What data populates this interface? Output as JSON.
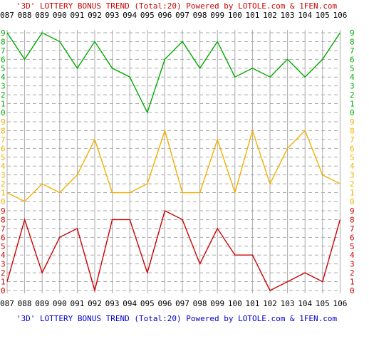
{
  "title_top": "'3D' LOTTERY BONUS TREND (Total:20)  Powered by LOTOLE.com & 1FEN.com",
  "title_bottom": "'3D' LOTTERY BONUS TREND (Total:20)  Powered by LOTOLE.com & 1FEN.com",
  "colors": {
    "title_top": "#cc0000",
    "title_bottom": "#0000cc",
    "grid": "#aaaaaa",
    "axis_text": "#000000"
  },
  "chart_data": {
    "type": "line",
    "x": [
      "087",
      "088",
      "089",
      "090",
      "091",
      "092",
      "093",
      "094",
      "095",
      "096",
      "097",
      "098",
      "099",
      "100",
      "101",
      "102",
      "103",
      "104",
      "105",
      "106"
    ],
    "ylim": [
      0,
      9
    ],
    "y_ticks": [
      "0",
      "1",
      "2",
      "3",
      "4",
      "5",
      "6",
      "7",
      "8",
      "9"
    ],
    "grid": true,
    "series": [
      {
        "color": "#00aa00",
        "values": [
          9,
          6,
          9,
          8,
          5,
          8,
          5,
          4,
          0,
          6,
          8,
          5,
          8,
          4,
          5,
          4,
          6,
          4,
          6,
          9
        ]
      },
      {
        "color": "#f0b000",
        "values": [
          1,
          0,
          2,
          1,
          3,
          7,
          1,
          1,
          2,
          8,
          1,
          1,
          7,
          1,
          8,
          2,
          6,
          8,
          3,
          2
        ]
      },
      {
        "color": "#cc0000",
        "values": [
          1,
          8,
          2,
          6,
          7,
          0,
          8,
          8,
          2,
          9,
          8,
          3,
          7,
          4,
          4,
          0,
          1,
          2,
          1,
          8
        ]
      }
    ]
  }
}
